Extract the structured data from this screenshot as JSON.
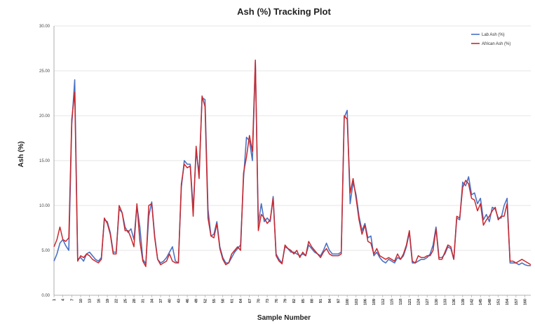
{
  "chart_data": {
    "type": "line",
    "title": "Ash (%) Tracking Plot",
    "xlabel": "Sample Number",
    "ylabel": "Ash (%)",
    "ylim": [
      0,
      30
    ],
    "yticks": [
      "0.00",
      "5.00",
      "10.00",
      "15.00",
      "20.00",
      "25.00",
      "30.00"
    ],
    "yticks_values": [
      0,
      5,
      10,
      15,
      20,
      25,
      30
    ],
    "grid": "horizontal",
    "legend_position": "top-right",
    "xticks": [
      "1",
      "4",
      "7",
      "10",
      "13",
      "16",
      "19",
      "22",
      "25",
      "28",
      "31",
      "34",
      "37",
      "40",
      "43",
      "46",
      "49",
      "52",
      "55",
      "58",
      "61",
      "64",
      "67",
      "70",
      "73",
      "76",
      "79",
      "82",
      "85",
      "88",
      "91",
      "94",
      "97",
      "100",
      "103",
      "106",
      "109",
      "112",
      "115",
      "118",
      "121",
      "124",
      "127",
      "130",
      "133",
      "136",
      "139",
      "142",
      "145",
      "148",
      "151",
      "154",
      "157",
      "160",
      "163"
    ],
    "x_start": 1,
    "series": [
      {
        "name": "Lab Ash (%)",
        "color": "#4a72c4",
        "values": [
          3.8,
          4.6,
          5.8,
          6.2,
          5.5,
          5.0,
          19.0,
          24.0,
          4.0,
          4.2,
          3.8,
          4.6,
          4.8,
          4.4,
          4.0,
          3.8,
          4.2,
          8.4,
          8.2,
          7.0,
          4.8,
          4.8,
          9.6,
          9.2,
          7.6,
          7.0,
          7.4,
          6.2,
          10.0,
          7.6,
          4.0,
          3.5,
          8.8,
          10.4,
          6.6,
          4.0,
          3.6,
          3.8,
          4.2,
          4.8,
          5.4,
          3.8,
          3.6,
          12.0,
          15.0,
          14.6,
          14.6,
          9.6,
          16.0,
          13.6,
          22.0,
          21.8,
          9.6,
          6.6,
          6.8,
          8.2,
          5.4,
          4.2,
          3.6,
          3.6,
          4.2,
          4.8,
          5.2,
          5.6,
          13.0,
          17.6,
          17.2,
          15.0,
          26.0,
          8.0,
          10.2,
          8.2,
          8.6,
          8.2,
          11.0,
          4.6,
          4.0,
          3.6,
          5.4,
          5.2,
          4.8,
          4.8,
          4.6,
          4.4,
          4.6,
          4.4,
          5.6,
          5.2,
          4.8,
          4.6,
          4.4,
          5.0,
          5.8,
          5.0,
          4.6,
          4.6,
          4.6,
          4.8,
          19.8,
          20.6,
          10.2,
          12.6,
          11.2,
          8.8,
          7.2,
          8.0,
          6.4,
          6.6,
          4.4,
          4.8,
          4.2,
          3.8,
          3.6,
          4.0,
          3.8,
          3.6,
          4.2,
          4.0,
          4.4,
          5.4,
          7.0,
          3.6,
          3.6,
          3.8,
          4.0,
          4.0,
          4.2,
          4.6,
          5.6,
          7.6,
          4.2,
          4.2,
          4.6,
          5.4,
          5.2,
          4.0,
          8.6,
          8.4,
          12.6,
          12.2,
          13.2,
          11.2,
          11.4,
          10.2,
          10.8,
          8.4,
          9.0,
          8.2,
          9.8,
          9.6,
          8.6,
          8.6,
          10.0,
          10.8,
          3.6,
          3.6,
          3.6,
          3.4,
          3.6,
          3.4,
          3.3,
          3.3
        ]
      },
      {
        "name": "African Ash (%)",
        "color": "#c8282e",
        "values": [
          5.4,
          6.2,
          7.6,
          6.2,
          6.0,
          6.4,
          19.6,
          22.6,
          3.8,
          4.4,
          4.2,
          4.6,
          4.4,
          4.0,
          3.8,
          3.6,
          4.0,
          8.6,
          8.0,
          6.8,
          4.6,
          4.6,
          10.0,
          9.2,
          7.2,
          7.2,
          6.4,
          5.4,
          10.2,
          6.0,
          3.8,
          3.2,
          10.0,
          10.2,
          6.4,
          4.0,
          3.4,
          3.6,
          3.8,
          4.6,
          3.8,
          3.6,
          3.6,
          12.4,
          14.6,
          14.2,
          14.4,
          8.8,
          16.6,
          13.0,
          22.2,
          21.0,
          8.6,
          6.6,
          6.4,
          8.0,
          5.2,
          4.0,
          3.4,
          3.6,
          4.6,
          5.0,
          5.4,
          5.0,
          13.6,
          15.4,
          17.8,
          16.0,
          26.2,
          7.2,
          9.0,
          8.6,
          8.0,
          8.4,
          10.8,
          4.4,
          3.8,
          3.5,
          5.6,
          5.2,
          5.0,
          4.6,
          5.0,
          4.2,
          4.8,
          4.4,
          6.0,
          5.4,
          5.0,
          4.6,
          4.2,
          4.8,
          5.2,
          4.6,
          4.4,
          4.4,
          4.4,
          4.6,
          20.0,
          19.6,
          11.4,
          13.0,
          10.8,
          8.4,
          6.8,
          7.8,
          6.0,
          5.8,
          4.6,
          5.2,
          4.4,
          4.2,
          4.0,
          4.2,
          4.0,
          3.8,
          4.6,
          4.0,
          4.6,
          5.6,
          7.2,
          3.8,
          3.6,
          4.4,
          4.2,
          4.2,
          4.4,
          4.4,
          5.0,
          7.4,
          4.0,
          4.0,
          4.8,
          5.6,
          5.4,
          4.0,
          8.8,
          8.6,
          12.0,
          12.8,
          12.4,
          10.8,
          10.6,
          9.4,
          10.2,
          7.8,
          8.4,
          8.8,
          9.4,
          9.8,
          8.4,
          8.8,
          8.8,
          10.2,
          3.8,
          3.8,
          3.6,
          3.8,
          4.0,
          3.8,
          3.6,
          3.4
        ]
      }
    ]
  }
}
